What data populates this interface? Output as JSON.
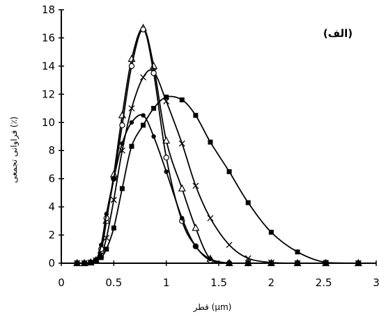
{
  "chart_data": {
    "type": "line",
    "panel_label": "(الف)",
    "xlabel": "قطر (μm)",
    "ylabel": "فراوانی تجمعی (٪)",
    "xlim": [
      0,
      3
    ],
    "ylim": [
      0,
      18
    ],
    "x_ticks": [
      "0",
      "0.5",
      "1",
      "1.5",
      "2",
      "2.5",
      "3"
    ],
    "y_ticks": [
      "0",
      "2",
      "4",
      "6",
      "8",
      "10",
      "12",
      "14",
      "16",
      "18"
    ],
    "grid": false,
    "legend": "none",
    "series": [
      {
        "marker": "filled-square",
        "color": "#000000",
        "x": [
          0.15,
          0.22,
          0.28,
          0.33,
          0.38,
          0.43,
          0.5,
          0.58,
          0.67,
          0.78,
          0.88,
          1.0,
          1.15,
          1.28,
          1.42,
          1.6,
          1.78,
          2.0,
          2.25,
          2.52,
          2.83
        ],
        "y": [
          0,
          0,
          0.05,
          0.15,
          0.4,
          1.0,
          2.5,
          5.3,
          8.3,
          9.8,
          11.0,
          11.8,
          11.6,
          10.5,
          8.6,
          6.5,
          4.3,
          2.2,
          0.8,
          0.05,
          0
        ]
      },
      {
        "marker": "x",
        "color": "#000000",
        "x": [
          0.15,
          0.22,
          0.28,
          0.33,
          0.38,
          0.43,
          0.5,
          0.58,
          0.67,
          0.78,
          0.88,
          1.0,
          1.15,
          1.28,
          1.42,
          1.6,
          1.78,
          2.0,
          2.25,
          2.52,
          2.83
        ],
        "y": [
          0,
          0,
          0.05,
          0.2,
          0.6,
          1.8,
          4.5,
          8.0,
          11.0,
          13.2,
          13.6,
          11.5,
          8.5,
          5.5,
          3.2,
          1.3,
          0.35,
          0.05,
          0,
          0,
          0
        ]
      },
      {
        "marker": "open-triangle",
        "color": "#000000",
        "x": [
          0.15,
          0.22,
          0.28,
          0.33,
          0.38,
          0.43,
          0.5,
          0.58,
          0.67,
          0.78,
          0.88,
          1.0,
          1.15,
          1.28,
          1.42,
          1.6,
          1.78,
          2.0,
          2.25,
          2.52,
          2.83
        ],
        "y": [
          0,
          0,
          0.05,
          0.2,
          0.9,
          3.0,
          6.3,
          10.5,
          14.5,
          16.7,
          14.0,
          8.7,
          5.3,
          2.5,
          0.3,
          0,
          0,
          0,
          0,
          0,
          0
        ]
      },
      {
        "marker": "open-circle",
        "color": "#000000",
        "x": [
          0.15,
          0.22,
          0.28,
          0.33,
          0.38,
          0.43,
          0.5,
          0.58,
          0.67,
          0.78,
          0.88,
          1.0,
          1.15,
          1.28,
          1.42,
          1.6,
          1.78,
          2.0,
          2.25,
          2.52,
          2.83
        ],
        "y": [
          0,
          0,
          0.05,
          0.2,
          1.0,
          3.2,
          6.0,
          9.8,
          14.0,
          16.6,
          13.5,
          7.5,
          3.0,
          1.2,
          0.2,
          0,
          0,
          0,
          0,
          0,
          0
        ]
      },
      {
        "marker": "filled-circle",
        "color": "#000000",
        "x": [
          0.15,
          0.22,
          0.28,
          0.33,
          0.38,
          0.43,
          0.5,
          0.58,
          0.67,
          0.78,
          0.88,
          1.0,
          1.15,
          1.28,
          1.42,
          1.6,
          1.78,
          2.0,
          2.25,
          2.52,
          2.83
        ],
        "y": [
          0,
          0,
          0.05,
          0.2,
          1.3,
          3.5,
          6.0,
          8.5,
          10.0,
          10.5,
          9.0,
          6.5,
          3.2,
          1.2,
          0.3,
          0,
          0,
          0,
          0,
          0,
          0
        ]
      }
    ]
  }
}
